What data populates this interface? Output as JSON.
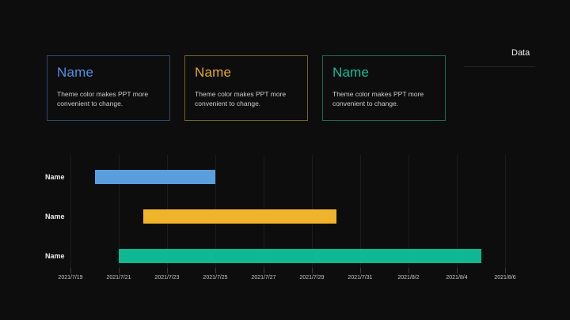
{
  "page": {
    "background": "#0d0d0d",
    "data_label": "Data"
  },
  "cards": [
    {
      "title": "Name",
      "body": "Theme color makes PPT more convenient to change.",
      "title_color": "#4e93e6",
      "border_color": "#2c4a6e"
    },
    {
      "title": "Name",
      "body": "Theme color makes PPT more convenient to change.",
      "title_color": "#e3ab2a",
      "border_color": "#77621f"
    },
    {
      "title": "Name",
      "body": "Theme color makes PPT more convenient to change.",
      "title_color": "#16bc9a",
      "border_color": "#1e6a52"
    }
  ],
  "chart_data": {
    "type": "bar",
    "subtype": "horizontal-gantt",
    "axis_start": "2021/7/19",
    "axis_end": "2021/8/6",
    "tick_labels": [
      "2021/7/19",
      "2021/7/21",
      "2021/7/23",
      "2021/7/25",
      "2021/7/27",
      "2021/7/29",
      "2021/7/31",
      "2021/8/2",
      "2021/8/4",
      "2021/8/6"
    ],
    "grid": true,
    "tasks": [
      {
        "label": "Name",
        "start": "2021/7/20",
        "end": "2021/7/25",
        "duration_days": 5,
        "color": "#5b9edd"
      },
      {
        "label": "Name",
        "start": "2021/7/22",
        "end": "2021/7/30",
        "duration_days": 8,
        "color": "#efb42b"
      },
      {
        "label": "Name",
        "start": "2021/7/21",
        "end": "2021/8/5",
        "duration_days": 15,
        "color": "#0fb893"
      }
    ]
  }
}
